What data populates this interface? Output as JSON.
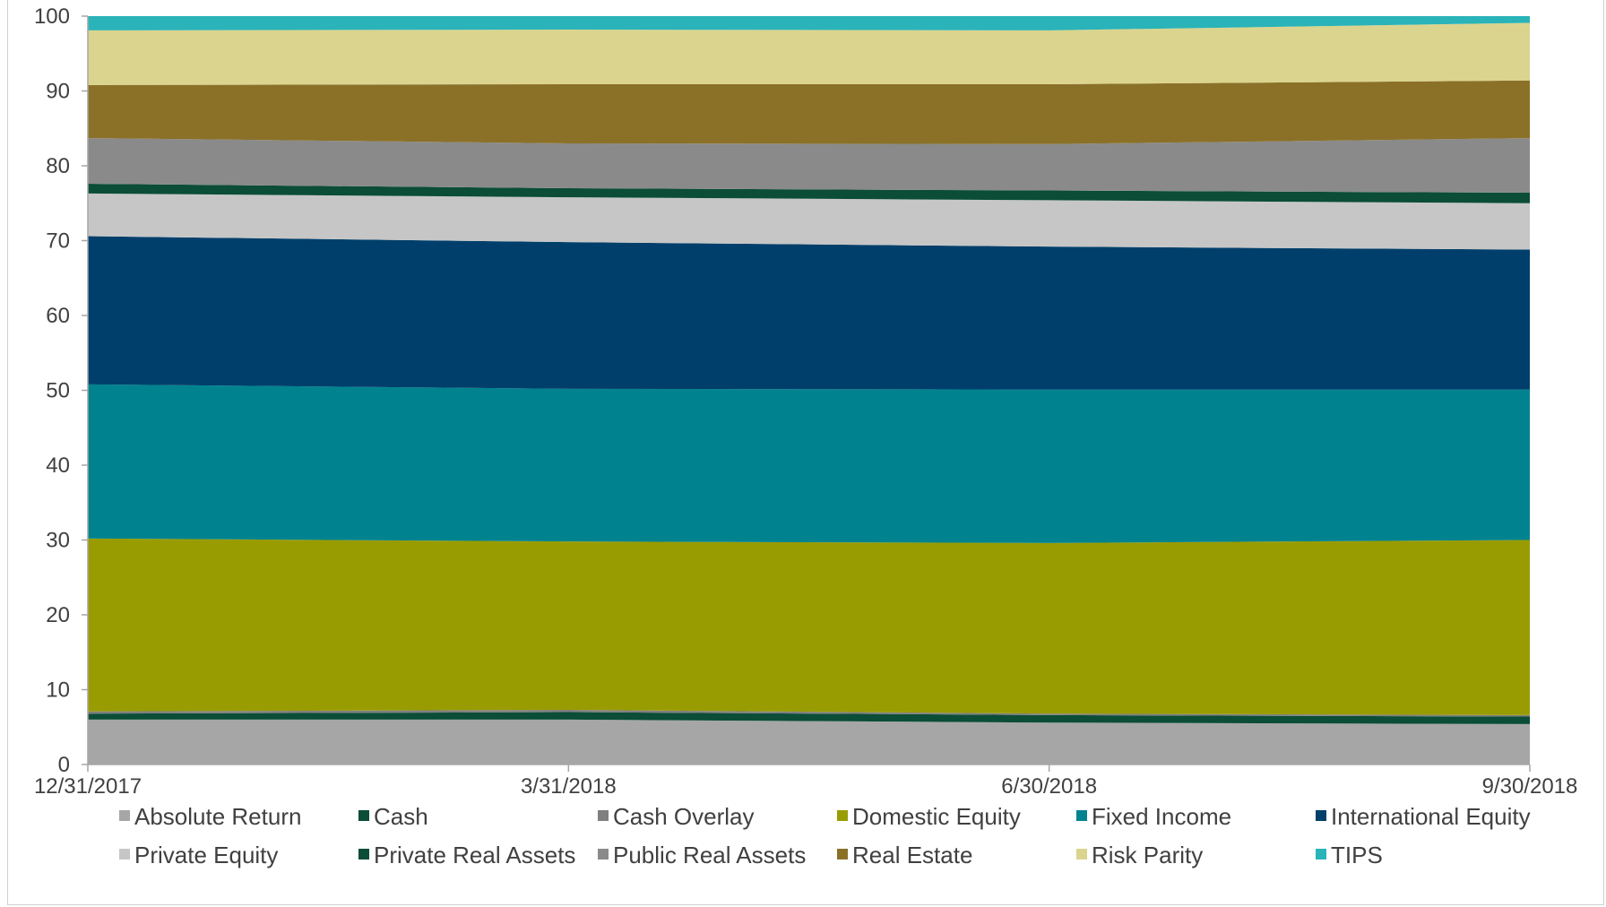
{
  "chart_data": {
    "type": "area",
    "stacked": true,
    "title": "",
    "xlabel": "",
    "ylabel": "",
    "ylim": [
      0,
      100
    ],
    "yticks": [
      0,
      10,
      20,
      30,
      40,
      50,
      60,
      70,
      80,
      90,
      100
    ],
    "x": [
      "12/31/2017",
      "3/31/2018",
      "6/30/2018",
      "9/30/2018"
    ],
    "grid": false,
    "legend_position": "bottom",
    "series": [
      {
        "name": "Absolute Return",
        "color": "#a6a6a6",
        "values": [
          6.0,
          6.0,
          5.6,
          5.4
        ]
      },
      {
        "name": "Cash",
        "color": "#0b4d36",
        "values": [
          0.8,
          1.0,
          1.0,
          1.0
        ]
      },
      {
        "name": "Cash Overlay",
        "color": "#7f7f7f",
        "values": [
          0.3,
          0.3,
          0.2,
          0.2
        ]
      },
      {
        "name": "Domestic Equity",
        "color": "#999c00",
        "values": [
          23.1,
          22.5,
          22.8,
          23.4
        ]
      },
      {
        "name": "Fixed Income",
        "color": "#00838f",
        "values": [
          20.6,
          20.4,
          20.5,
          20.1
        ]
      },
      {
        "name": "International Equity",
        "color": "#003f6b",
        "values": [
          19.8,
          19.6,
          19.1,
          18.7
        ]
      },
      {
        "name": "Private Equity",
        "color": "#c6c6c6",
        "values": [
          5.7,
          6.0,
          6.2,
          6.2
        ]
      },
      {
        "name": "Private Real Assets",
        "color": "#0b4d36",
        "values": [
          1.3,
          1.2,
          1.3,
          1.4
        ]
      },
      {
        "name": "Public Real Assets",
        "color": "#8a8a8a",
        "values": [
          6.1,
          6.0,
          6.2,
          7.3
        ]
      },
      {
        "name": "Real Estate",
        "color": "#8b7128",
        "values": [
          7.1,
          7.9,
          8.0,
          7.7
        ]
      },
      {
        "name": "Risk Parity",
        "color": "#dbd48e",
        "values": [
          7.3,
          7.3,
          7.2,
          7.7
        ]
      },
      {
        "name": "TIPS",
        "color": "#2ab3b8",
        "values": [
          1.9,
          1.8,
          1.9,
          0.9
        ]
      }
    ]
  }
}
